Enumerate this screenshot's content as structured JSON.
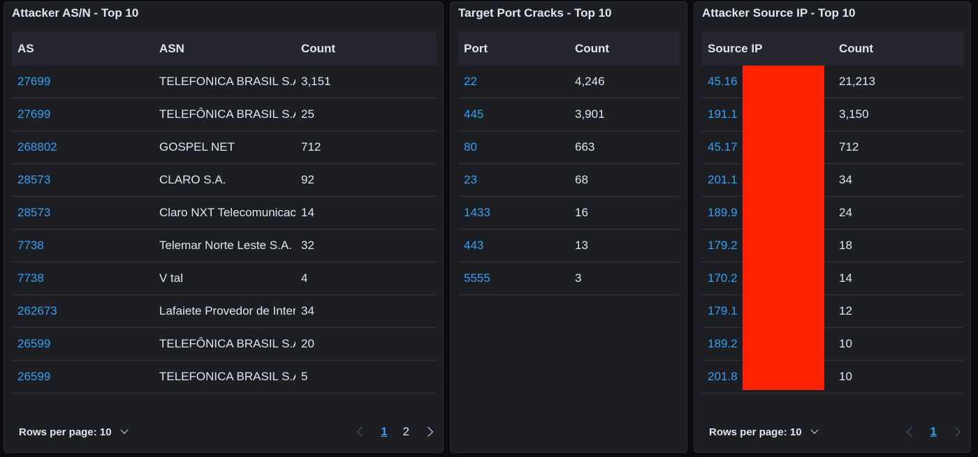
{
  "panels": [
    {
      "title": "Attacker AS/N - Top 10",
      "columns": [
        "AS",
        "ASN",
        "Count"
      ],
      "rows": [
        [
          "27699",
          "TELEFONICA BRASIL S.A",
          "3,151"
        ],
        [
          "27699",
          "TELEFÔNICA BRASIL S.A",
          "25"
        ],
        [
          "268802",
          "GOSPEL NET",
          "712"
        ],
        [
          "28573",
          "CLARO S.A.",
          "92"
        ],
        [
          "28573",
          "Claro NXT Telecomunicacoes",
          "14"
        ],
        [
          "7738",
          "Telemar Norte Leste S.A.",
          "32"
        ],
        [
          "7738",
          "V tal",
          "4"
        ],
        [
          "262673",
          "Lafaiete Provedor de Internet",
          "34"
        ],
        [
          "26599",
          "TELEFÔNICA BRASIL S.A",
          "20"
        ],
        [
          "26599",
          "TELEFONICA BRASIL S.A",
          "5"
        ]
      ],
      "footer": {
        "rows_per_page": "Rows per page: 10",
        "pages": [
          "1",
          "2"
        ],
        "active_page": "1"
      }
    },
    {
      "title": "Target Port Cracks - Top 10",
      "columns": [
        "Port",
        "Count"
      ],
      "rows": [
        [
          "22",
          "4,246"
        ],
        [
          "445",
          "3,901"
        ],
        [
          "80",
          "663"
        ],
        [
          "23",
          "68"
        ],
        [
          "1433",
          "16"
        ],
        [
          "443",
          "13"
        ],
        [
          "5555",
          "3"
        ]
      ]
    },
    {
      "title": "Attacker Source IP - Top 10",
      "columns": [
        "Source IP",
        "Count"
      ],
      "rows": [
        [
          "45.16",
          "21,213"
        ],
        [
          "191.1",
          "3,150"
        ],
        [
          "45.17",
          "712"
        ],
        [
          "201.1",
          "34"
        ],
        [
          "189.9",
          "24"
        ],
        [
          "179.2",
          "18"
        ],
        [
          "170.2",
          "14"
        ],
        [
          "179.1",
          "12"
        ],
        [
          "189.2",
          "10"
        ],
        [
          "201.8",
          "10"
        ]
      ],
      "footer": {
        "rows_per_page": "Rows per page: 10",
        "pages": [
          "1"
        ],
        "active_page": "1"
      }
    }
  ],
  "colors": {
    "background": "#0b0c10",
    "panel": "#1d1e24",
    "header_row": "#25262e",
    "link": "#36a2ef",
    "text": "#dfe5ef",
    "redaction": "#ff2200"
  }
}
